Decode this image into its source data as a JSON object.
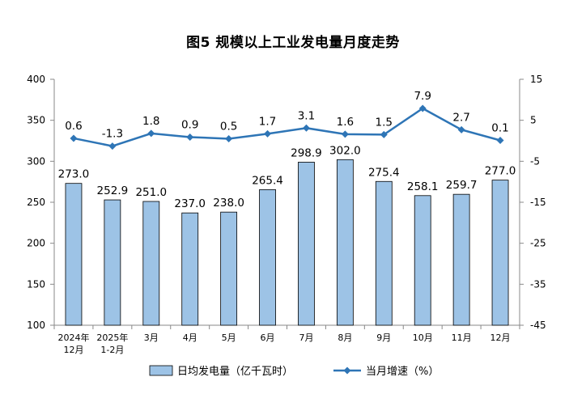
{
  "chart_data": {
    "type": "bar",
    "title": "图5  规模以上工业发电量月度走势",
    "categories": [
      [
        "2024年",
        "12月"
      ],
      [
        "2025年",
        "1-2月"
      ],
      [
        "3月"
      ],
      [
        "4月"
      ],
      [
        "5月"
      ],
      [
        "6月"
      ],
      [
        "7月"
      ],
      [
        "8月"
      ],
      [
        "9月"
      ],
      [
        "10月"
      ],
      [
        "11月"
      ],
      [
        "12月"
      ]
    ],
    "series": [
      {
        "name": "日均发电量（亿千瓦时）",
        "type": "bar",
        "axis": "left",
        "color": "#9dc3e6",
        "values": [
          273.0,
          252.9,
          251.0,
          237.0,
          238.0,
          265.4,
          298.9,
          302.0,
          275.4,
          258.1,
          259.7,
          277.0
        ],
        "labels": [
          "273.0",
          "252.9",
          "251.0",
          "237.0",
          "238.0",
          "265.4",
          "298.9",
          "302.0",
          "275.4",
          "258.1",
          "259.7",
          "277.0"
        ]
      },
      {
        "name": "当月增速（%）",
        "type": "line",
        "axis": "right",
        "color": "#2e75b6",
        "values": [
          0.6,
          -1.3,
          1.8,
          0.9,
          0.5,
          1.7,
          3.1,
          1.6,
          1.5,
          7.9,
          2.7,
          0.1
        ],
        "labels": [
          "0.6",
          "-1.3",
          "1.8",
          "0.9",
          "0.5",
          "1.7",
          "3.1",
          "1.6",
          "1.5",
          "7.9",
          "2.7",
          "0.1"
        ]
      }
    ],
    "y_left": {
      "min": 100,
      "max": 400,
      "ticks": [
        "400",
        "350",
        "300",
        "250",
        "200",
        "150",
        "100"
      ]
    },
    "y_right": {
      "min": -45,
      "max": 15,
      "ticks": [
        "15",
        "5",
        "-5",
        "-15",
        "-25",
        "-35",
        "-45"
      ]
    },
    "grid": false,
    "legend_position": "bottom"
  }
}
